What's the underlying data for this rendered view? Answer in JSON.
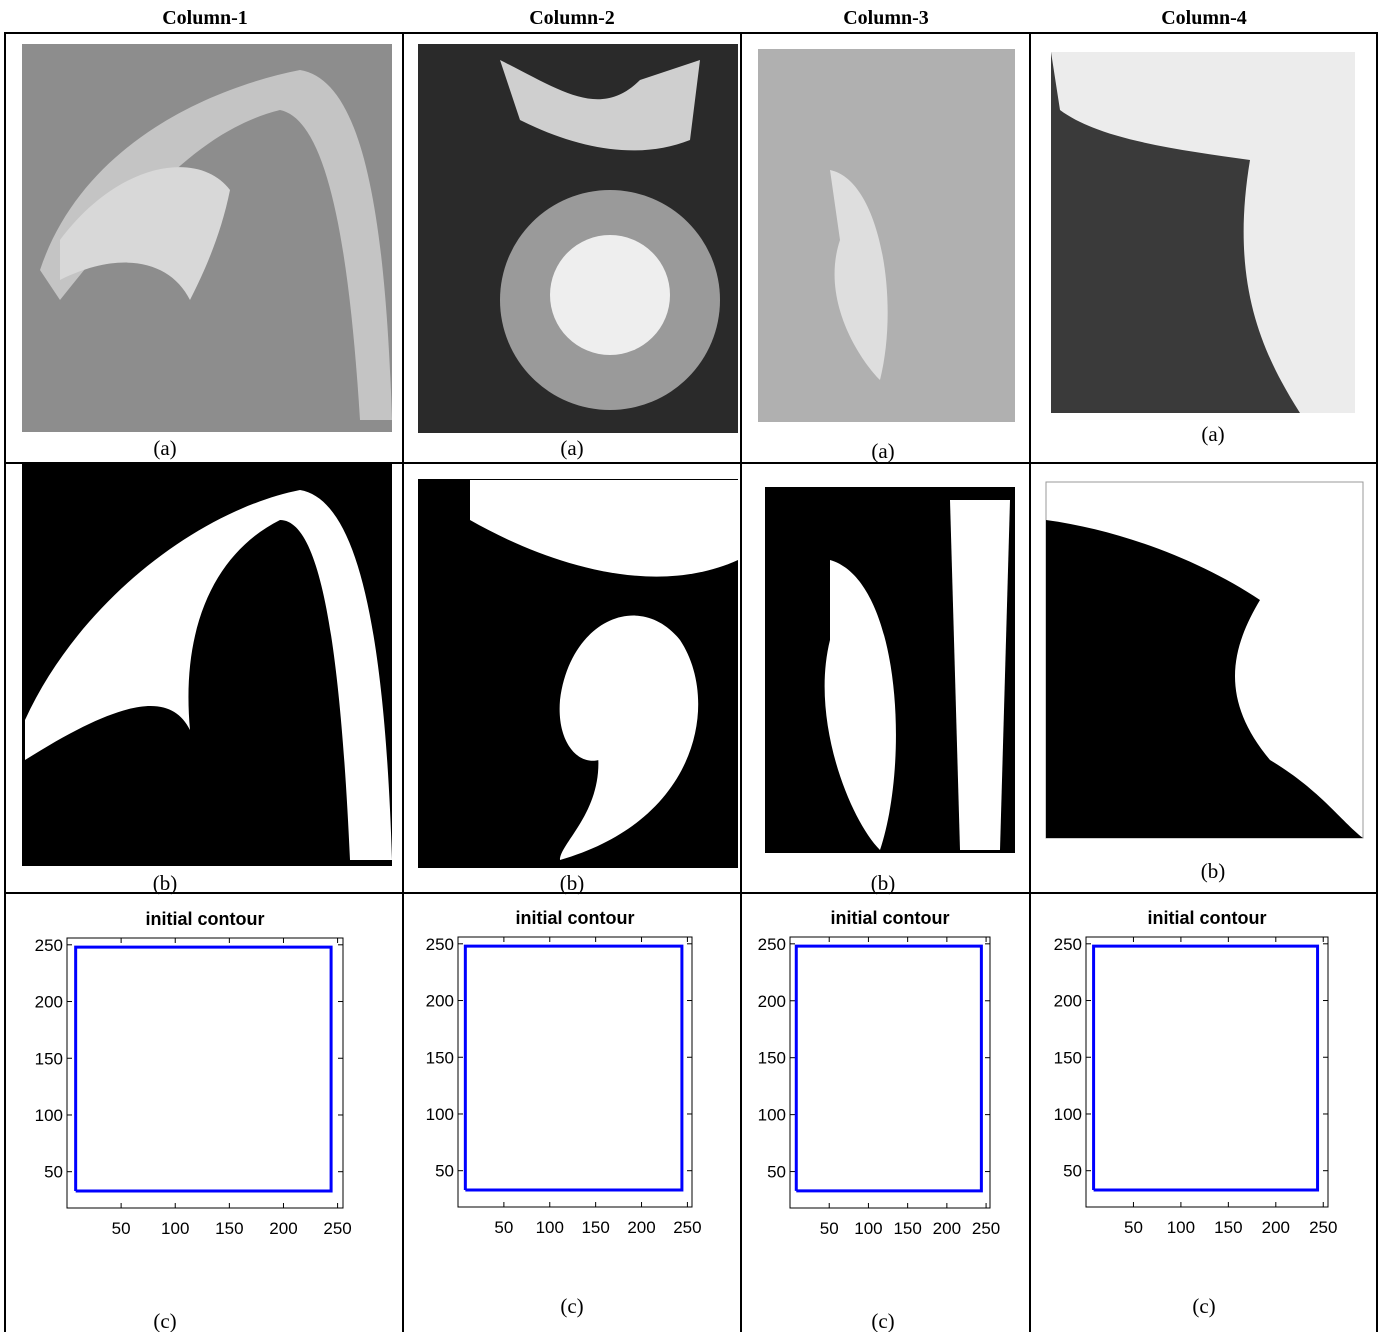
{
  "header": {
    "columns": [
      "Column-1",
      "Column-2",
      "Column-3",
      "Column-4"
    ]
  },
  "rows": [
    {
      "captions": [
        "(a)",
        "(a)",
        "(a)",
        "(a)"
      ]
    },
    {
      "captions": [
        "(b)",
        "(b)",
        "(b)",
        "(b)"
      ]
    },
    {
      "captions": [
        "(c)",
        "(c)",
        "(c)",
        "(c)"
      ]
    }
  ],
  "chart_data": [
    {
      "type": "line",
      "title": "initial contour",
      "x": [
        8,
        244,
        244,
        8,
        8
      ],
      "values": [
        33,
        33,
        248,
        248,
        33
      ],
      "color": "#0000ff",
      "xlim": [
        0,
        255
      ],
      "ylim": [
        18,
        256
      ],
      "xticks": [
        50,
        100,
        150,
        200,
        250
      ],
      "yticks": [
        50,
        100,
        150,
        200,
        250
      ]
    },
    {
      "type": "line",
      "title": "initial contour",
      "x": [
        8,
        244,
        244,
        8,
        8
      ],
      "values": [
        33,
        33,
        248,
        248,
        33
      ],
      "color": "#0000ff",
      "xlim": [
        0,
        255
      ],
      "ylim": [
        18,
        256
      ],
      "xticks": [
        50,
        100,
        150,
        200,
        250
      ],
      "yticks": [
        50,
        100,
        150,
        200,
        250
      ]
    },
    {
      "type": "line",
      "title": "initial contour",
      "x": [
        8,
        244,
        244,
        8,
        8
      ],
      "values": [
        33,
        33,
        248,
        248,
        33
      ],
      "color": "#0000ff",
      "xlim": [
        0,
        255
      ],
      "ylim": [
        18,
        256
      ],
      "xticks": [
        50,
        100,
        150,
        200,
        250
      ],
      "yticks": [
        50,
        100,
        150,
        200,
        250
      ]
    },
    {
      "type": "line",
      "title": "initial contour",
      "x": [
        8,
        244,
        244,
        8,
        8
      ],
      "values": [
        33,
        33,
        248,
        248,
        33
      ],
      "color": "#0000ff",
      "xlim": [
        0,
        255
      ],
      "ylim": [
        18,
        256
      ],
      "xticks": [
        50,
        100,
        150,
        200,
        250
      ],
      "yticks": [
        50,
        100,
        150,
        200,
        250
      ]
    }
  ]
}
